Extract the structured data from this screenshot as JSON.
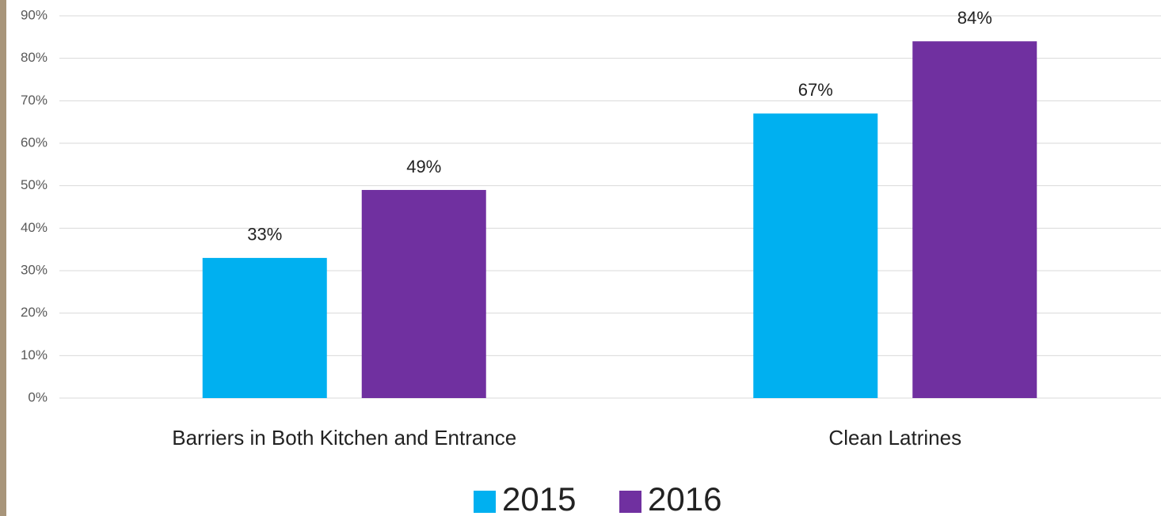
{
  "chart_data": {
    "type": "bar",
    "categories": [
      "Barriers in Both Kitchen and Entrance",
      "Clean Latrines"
    ],
    "series": [
      {
        "name": "2015",
        "color": "#00b0f0",
        "values": [
          33,
          67
        ],
        "value_labels": [
          "33%",
          "67%"
        ]
      },
      {
        "name": "2016",
        "color": "#7030a0",
        "values": [
          49,
          84
        ],
        "value_labels": [
          "49%",
          "84%"
        ]
      }
    ],
    "ylim": [
      0,
      90
    ],
    "yticks": [
      {
        "value": 0,
        "label": "0%"
      },
      {
        "value": 10,
        "label": "10%"
      },
      {
        "value": 20,
        "label": "20%"
      },
      {
        "value": 30,
        "label": "30%"
      },
      {
        "value": 40,
        "label": "40%"
      },
      {
        "value": 50,
        "label": "50%"
      },
      {
        "value": 60,
        "label": "60%"
      },
      {
        "value": 70,
        "label": "70%"
      },
      {
        "value": 80,
        "label": "80%"
      },
      {
        "value": 90,
        "label": "90%"
      }
    ],
    "grid": true,
    "legend": "bottom"
  }
}
